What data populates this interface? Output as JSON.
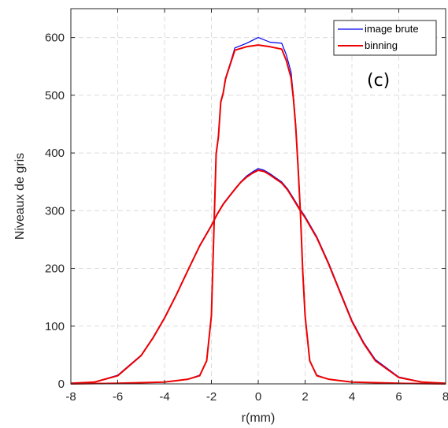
{
  "chart_data": {
    "type": "line",
    "xlabel": "r(mm)",
    "ylabel": "Niveaux de gris",
    "xlim": [
      -8,
      8
    ],
    "ylim": [
      0,
      650
    ],
    "xticks": [
      -8,
      -6,
      -4,
      -2,
      0,
      2,
      4,
      6,
      8
    ],
    "yticks": [
      0,
      100,
      200,
      300,
      400,
      500,
      600
    ],
    "grid": true,
    "legend_position": "top-right",
    "annotation": "(c)",
    "colors": {
      "image_brute": "#0000ee",
      "binning": "#ee0000"
    },
    "series": [
      {
        "name": "image brute",
        "x": [
          -8,
          -7,
          -6,
          -5,
          -4.5,
          -4,
          -3.5,
          -3,
          -2.5,
          -2,
          -1.75,
          -1.5,
          -1.25,
          -1,
          -0.75,
          -0.5,
          -0.25,
          0,
          0.25,
          0.5,
          0.75,
          1,
          1.25,
          1.5,
          1.75,
          2,
          2.5,
          3,
          3.5,
          4,
          4.5,
          5,
          6,
          7,
          8
        ],
        "values": [
          1,
          3,
          15,
          50,
          80,
          115,
          155,
          198,
          240,
          275,
          295,
          312,
          325,
          338,
          350,
          360,
          367,
          373,
          370,
          364,
          357,
          350,
          338,
          322,
          305,
          290,
          255,
          210,
          160,
          110,
          72,
          42,
          12,
          3,
          1
        ]
      },
      {
        "name": "binning",
        "x": [
          -8,
          -7,
          -6,
          -5,
          -4.5,
          -4,
          -3.5,
          -3,
          -2.5,
          -2,
          -1.75,
          -1.5,
          -1.25,
          -1,
          -0.75,
          -0.5,
          -0.25,
          0,
          0.25,
          0.5,
          0.75,
          1,
          1.25,
          1.5,
          1.75,
          2,
          2.5,
          3,
          3.5,
          4,
          4.5,
          5,
          6,
          7,
          8
        ],
        "values": [
          1,
          3,
          14,
          49,
          79,
          114,
          154,
          197,
          239,
          274,
          294,
          311,
          324,
          337,
          349,
          358,
          365,
          370,
          368,
          362,
          355,
          348,
          336,
          320,
          303,
          288,
          253,
          208,
          158,
          108,
          70,
          40,
          11,
          3,
          1
        ]
      },
      {
        "name": "image brute",
        "x": [
          -8,
          -6,
          -4,
          -3,
          -2.5,
          -2.2,
          -2,
          -1.9,
          -1.8,
          -1.7,
          -1.6,
          -1.5,
          -1.4,
          -1.2,
          -1,
          -0.5,
          0,
          0.5,
          1,
          1.2,
          1.4,
          1.5,
          1.6,
          1.7,
          1.8,
          1.9,
          2,
          2.2,
          2.5,
          3,
          4,
          6,
          8
        ],
        "values": [
          0,
          1,
          3,
          8,
          15,
          40,
          120,
          260,
          400,
          430,
          490,
          505,
          530,
          555,
          582,
          590,
          600,
          592,
          590,
          570,
          540,
          500,
          450,
          380,
          300,
          200,
          120,
          40,
          15,
          8,
          3,
          1,
          0
        ]
      },
      {
        "name": "binning",
        "x": [
          -8,
          -6,
          -4,
          -3,
          -2.5,
          -2.2,
          -2,
          -1.9,
          -1.8,
          -1.7,
          -1.6,
          -1.5,
          -1.4,
          -1.2,
          -1,
          -0.5,
          0,
          0.5,
          1,
          1.2,
          1.4,
          1.5,
          1.6,
          1.7,
          1.8,
          1.9,
          2,
          2.2,
          2.5,
          3,
          4,
          6,
          8
        ],
        "values": [
          0,
          1,
          3,
          8,
          14,
          40,
          118,
          258,
          398,
          428,
          488,
          503,
          528,
          553,
          578,
          584,
          587,
          584,
          580,
          560,
          530,
          495,
          445,
          375,
          295,
          195,
          118,
          40,
          14,
          8,
          3,
          1,
          0
        ]
      }
    ]
  }
}
